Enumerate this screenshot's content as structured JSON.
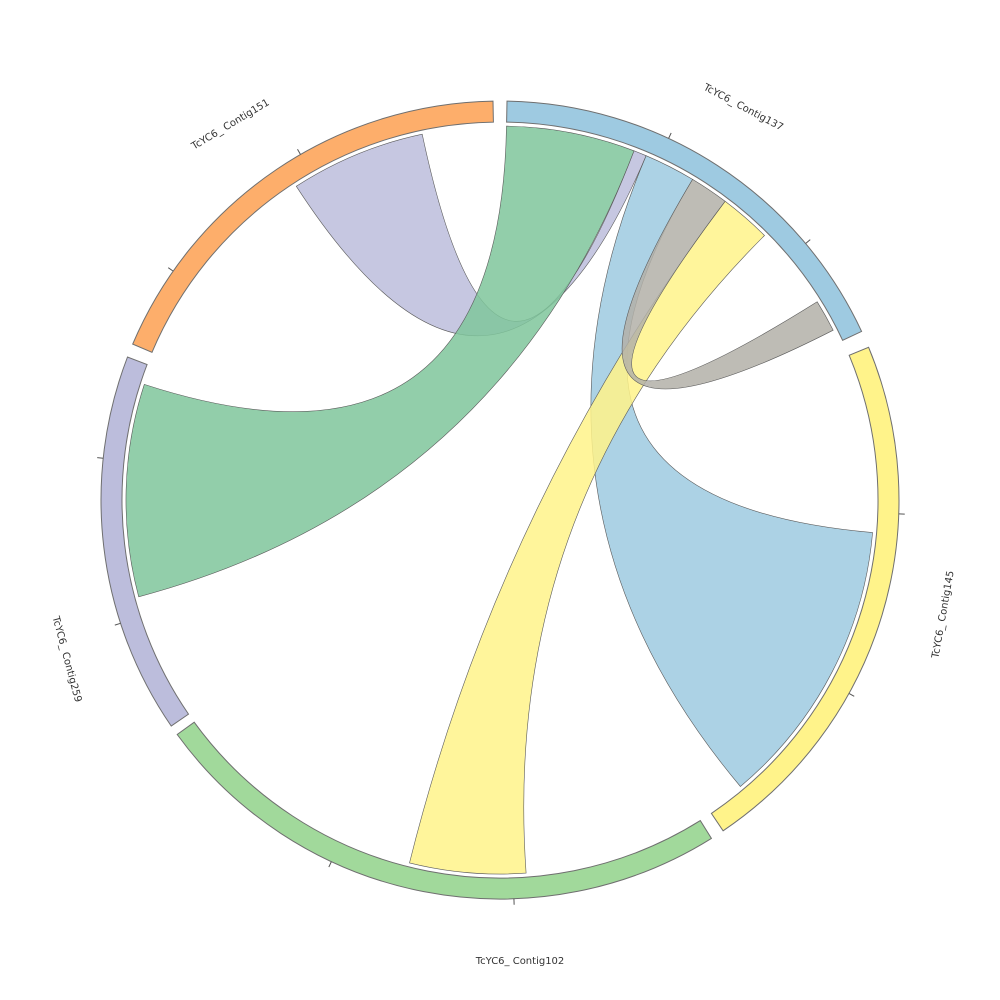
{
  "segments": [
    {
      "id": "c137",
      "label": "TcYC6_ Contig137",
      "color": "#9ecae1"
    },
    {
      "id": "c145",
      "label": "TcYC6_ Contig145",
      "color": "#fff38a"
    },
    {
      "id": "c102",
      "label": "TcYC6_ Contig102",
      "color": "#a1d99b"
    },
    {
      "id": "c259",
      "label": "TcYC6_ Contig259",
      "color": "#bcbddc"
    },
    {
      "id": "c151",
      "label": "TcYC6_ Contig151",
      "color": "#fdae6b"
    }
  ],
  "links": [
    {
      "source": "c137",
      "target": "c259",
      "color": "#7fc69b"
    },
    {
      "source": "c137",
      "target": "c145",
      "color": "#9ecae1"
    },
    {
      "source": "c137",
      "target": "c102",
      "color": "#fff38a"
    },
    {
      "source": "c137",
      "target": "c151",
      "color": "#bcbddc"
    },
    {
      "source": "c137",
      "target": "c137",
      "color": "#b3b0a8"
    }
  ]
}
